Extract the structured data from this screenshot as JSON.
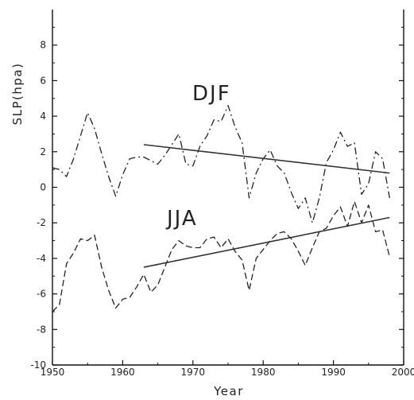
{
  "chart_data": {
    "type": "line",
    "title": "",
    "xlabel": "Year",
    "ylabel": "SLP(hpa)",
    "xlim": [
      1950,
      2000
    ],
    "ylim": [
      -10,
      10
    ],
    "x_ticks": [
      1950,
      1960,
      1970,
      1980,
      1990,
      2000
    ],
    "y_ticks": [
      -10,
      -8,
      -6,
      -4,
      -2,
      0,
      2,
      4,
      6,
      8
    ],
    "grid": false,
    "series": [
      {
        "name": "DJF",
        "style": "dash-dot",
        "x": [
          1950,
          1951,
          1952,
          1953,
          1954,
          1955,
          1956,
          1957,
          1958,
          1959,
          1960,
          1961,
          1962,
          1963,
          1964,
          1965,
          1966,
          1967,
          1968,
          1969,
          1970,
          1971,
          1972,
          1973,
          1974,
          1975,
          1976,
          1977,
          1978,
          1979,
          1980,
          1981,
          1982,
          1983,
          1984,
          1985,
          1986,
          1987,
          1988,
          1989,
          1990,
          1991,
          1992,
          1993,
          1994,
          1995,
          1996,
          1997,
          1998
        ],
        "values": [
          1.1,
          1.0,
          0.6,
          1.6,
          2.9,
          4.2,
          3.3,
          1.9,
          0.6,
          -0.5,
          0.7,
          1.6,
          1.7,
          1.7,
          1.5,
          1.3,
          1.8,
          2.4,
          3.0,
          1.3,
          1.2,
          2.3,
          2.9,
          3.8,
          3.7,
          4.6,
          3.4,
          2.5,
          -0.6,
          0.8,
          1.6,
          2.1,
          1.2,
          0.8,
          -0.3,
          -1.2,
          -0.6,
          -2.0,
          -0.6,
          1.4,
          2.1,
          3.1,
          2.3,
          2.5,
          -0.4,
          0.2,
          2.0,
          1.6,
          -0.6
        ]
      },
      {
        "name": "JJA",
        "style": "dashed",
        "x": [
          1950,
          1951,
          1952,
          1953,
          1954,
          1955,
          1956,
          1957,
          1958,
          1959,
          1960,
          1961,
          1962,
          1963,
          1964,
          1965,
          1966,
          1967,
          1968,
          1969,
          1970,
          1971,
          1972,
          1973,
          1974,
          1975,
          1976,
          1977,
          1978,
          1979,
          1980,
          1981,
          1982,
          1983,
          1984,
          1985,
          1986,
          1987,
          1988,
          1989,
          1990,
          1991,
          1992,
          1993,
          1994,
          1995,
          1996,
          1997,
          1998
        ],
        "values": [
          -7.0,
          -6.6,
          -4.3,
          -3.7,
          -2.9,
          -3.0,
          -2.7,
          -4.5,
          -5.8,
          -6.8,
          -6.3,
          -6.2,
          -5.6,
          -4.9,
          -5.9,
          -5.5,
          -4.5,
          -3.5,
          -3.0,
          -3.3,
          -3.4,
          -3.4,
          -2.9,
          -2.8,
          -3.4,
          -2.9,
          -3.6,
          -4.1,
          -5.8,
          -4.0,
          -3.5,
          -3.0,
          -2.6,
          -2.5,
          -2.9,
          -3.6,
          -4.4,
          -3.4,
          -2.5,
          -2.3,
          -1.6,
          -1.1,
          -2.2,
          -0.8,
          -2.0,
          -1.0,
          -2.5,
          -2.4,
          -3.9
        ]
      }
    ],
    "trend_lines": [
      {
        "name": "DJF",
        "x": [
          1963,
          1998
        ],
        "y": [
          2.4,
          0.8
        ]
      },
      {
        "name": "JJA",
        "x": [
          1963,
          1998
        ],
        "y": [
          -4.5,
          -1.7
        ]
      }
    ],
    "annotations": [
      "DJF",
      "JJA"
    ],
    "colors": {
      "series": "#222222",
      "axis": "#111111"
    }
  }
}
